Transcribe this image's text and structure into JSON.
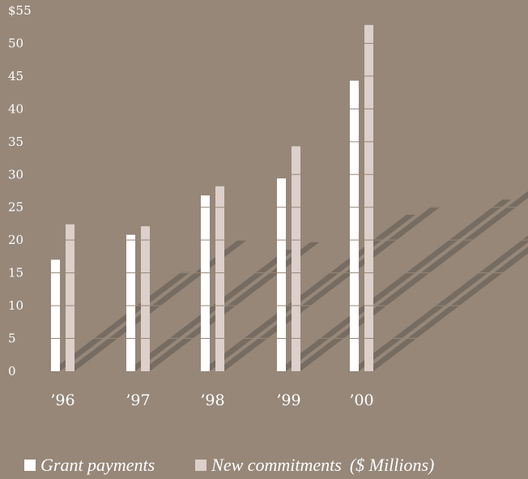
{
  "chart_data": {
    "type": "bar",
    "title": "",
    "xlabel": "",
    "ylabel": "",
    "categories": [
      "’96",
      "’97",
      "’98",
      "’99",
      "’00"
    ],
    "series": [
      {
        "name": "Grant payments",
        "values": [
          17,
          20.8,
          26.8,
          29.4,
          44.3
        ],
        "color": "#ffffff"
      },
      {
        "name": "New commitments",
        "values": [
          22.4,
          22.1,
          28.2,
          34.3,
          52.8
        ],
        "color": "#ddd0ca"
      }
    ],
    "units_note": "($ Millions)",
    "yticks": [
      "0",
      "5",
      "10",
      "15",
      "20",
      "25",
      "30",
      "35",
      "40",
      "45",
      "50",
      "$55"
    ],
    "ylim": [
      0,
      55
    ],
    "grid": true,
    "legend_position": "bottom-left"
  },
  "colors": {
    "background": "#968779",
    "shadow": "#72675d"
  }
}
